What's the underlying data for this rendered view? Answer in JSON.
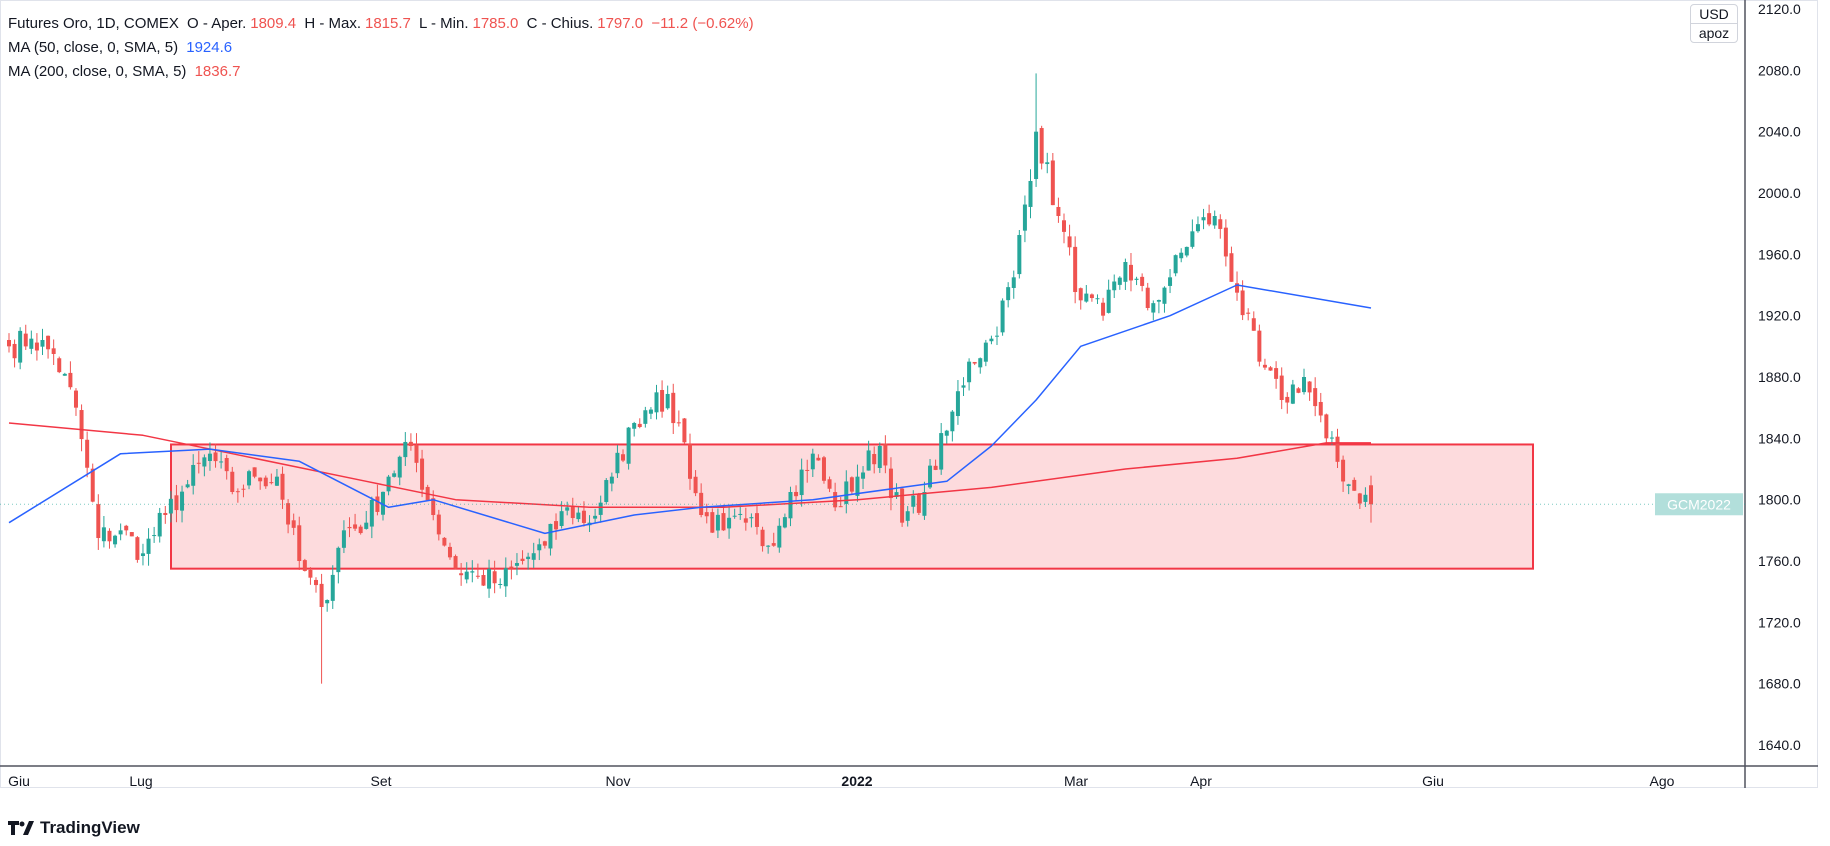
{
  "legend": {
    "title": "Futures Oro, 1D, COMEX",
    "o_label": "O - Aper.",
    "o": "1809.4",
    "h_label": "H - Max.",
    "h": "1815.7",
    "l_label": "L - Min.",
    "l": "1785.0",
    "c_label": "C - Chius.",
    "c": "1797.0",
    "change": "−11.2 (−0.62%)",
    "ma50_label": "MA (50, close, 0, SMA, 5)",
    "ma50": "1924.6",
    "ma200_label": "MA (200, close, 0, SMA, 5)",
    "ma200": "1836.7"
  },
  "units": {
    "currency": "USD",
    "unit": "apoz"
  },
  "symbol_tag": "GCM2022",
  "logo": "TradingView",
  "colors": {
    "up": "#26a69a",
    "down": "#ef5350",
    "ma50": "#2962ff",
    "ma200": "#f23645",
    "zone": "#f23645"
  },
  "chart_data": {
    "type": "candlestick",
    "title": "Futures Oro, 1D, COMEX",
    "ylim": [
      1620,
      2120
    ],
    "y_ticks": [
      "2120.0",
      "2080.0",
      "2040.0",
      "2000.0",
      "1960.0",
      "1920.0",
      "1880.0",
      "1840.0",
      "1800.0",
      "1760.0",
      "1720.0",
      "1680.0",
      "1640.0"
    ],
    "x_ticks": [
      "Giu",
      "Lug",
      "Set",
      "Nov",
      "2022",
      "Mar",
      "Apr",
      "Giu",
      "Ago"
    ],
    "days_per_key": 4,
    "weekly_closes": [
      1900,
      1905,
      1895,
      1860,
      1775,
      1780,
      1765,
      1790,
      1810,
      1830,
      1805,
      1815,
      1815,
      1760,
      1730,
      1780,
      1785,
      1815,
      1835,
      1790,
      1755,
      1750,
      1745,
      1760,
      1770,
      1795,
      1785,
      1815,
      1850,
      1870,
      1850,
      1790,
      1780,
      1785,
      1770,
      1805,
      1830,
      1795,
      1815,
      1835,
      1785,
      1805,
      1845,
      1890,
      1905,
      1945,
      2040,
      1985,
      1930,
      1920,
      1955,
      1925,
      1945,
      1975,
      1985,
      1935,
      1890,
      1865,
      1880,
      1840,
      1810,
      1797
    ],
    "extremes": [
      {
        "key": 14,
        "low": 1680
      },
      {
        "key": 46,
        "high": 2078
      }
    ],
    "ma50": [
      [
        0,
        1785
      ],
      [
        5,
        1830
      ],
      [
        9,
        1833
      ],
      [
        13,
        1825
      ],
      [
        17,
        1795
      ],
      [
        19,
        1800
      ],
      [
        24,
        1778
      ],
      [
        28,
        1790
      ],
      [
        31,
        1795
      ],
      [
        36,
        1800
      ],
      [
        40,
        1808
      ],
      [
        42,
        1812
      ],
      [
        44,
        1835
      ],
      [
        46,
        1865
      ],
      [
        48,
        1900
      ],
      [
        52,
        1920
      ],
      [
        55,
        1940
      ],
      [
        61,
        1925
      ]
    ],
    "ma200": [
      [
        0,
        1850
      ],
      [
        6,
        1842
      ],
      [
        10,
        1830
      ],
      [
        16,
        1812
      ],
      [
        20,
        1800
      ],
      [
        26,
        1795
      ],
      [
        32,
        1795
      ],
      [
        38,
        1800
      ],
      [
        44,
        1808
      ],
      [
        50,
        1820
      ],
      [
        55,
        1827
      ],
      [
        59,
        1837
      ],
      [
        61,
        1837
      ]
    ],
    "zone": {
      "top": 1836,
      "bottom": 1755
    },
    "last_price": 1797
  }
}
